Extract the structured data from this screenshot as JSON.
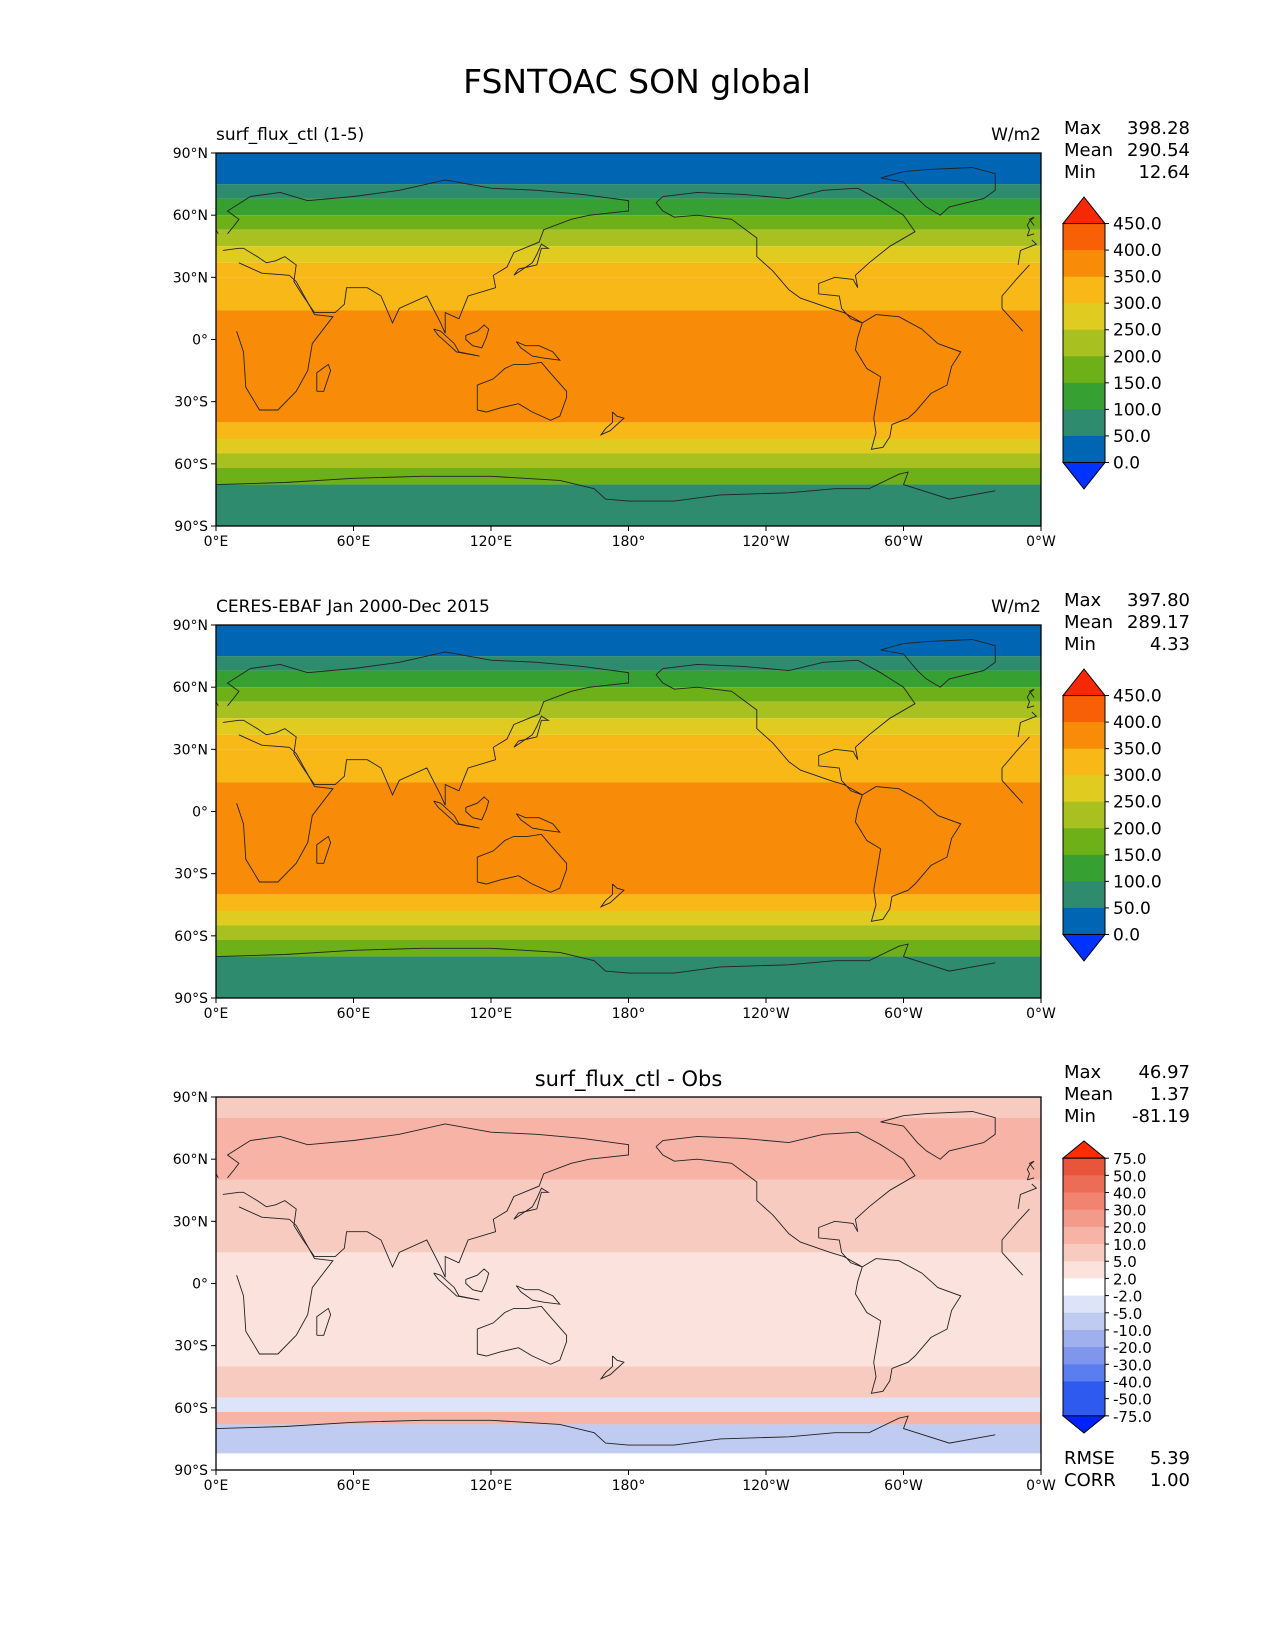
{
  "title": "FSNTOAC SON global",
  "colors": {
    "main_scale": [
      "#0033ff",
      "#0066b3",
      "#2e8b6e",
      "#36a032",
      "#6eb018",
      "#a8c020",
      "#e0cc20",
      "#f8b818",
      "#f88c08",
      "#f86008",
      "#f82800"
    ],
    "diff_scale": [
      "#0022ff",
      "#2f5af0",
      "#5a7df0",
      "#7f96ec",
      "#a0b0ee",
      "#c0cbf2",
      "#dde3f8",
      "#ffffff",
      "#fbe2dc",
      "#f8cbc1",
      "#f6b3a6",
      "#f39b8b",
      "#f08470",
      "#ec6c55",
      "#e8553b",
      "#ff2d00"
    ],
    "land_outline": "#222222"
  },
  "panels": [
    {
      "id": "model",
      "left_title": "surf_flux_ctl (1-5)",
      "center_title": "",
      "units": "W/m2",
      "stats": {
        "max_label": "Max",
        "max": "398.28",
        "mean_label": "Mean",
        "mean": "290.54",
        "min_label": "Min",
        "min": "12.64"
      },
      "colorbar_ticks": [
        "450.0",
        "400.0",
        "350.0",
        "300.0",
        "250.0",
        "200.0",
        "150.0",
        "100.0",
        "50.0",
        "0.0"
      ]
    },
    {
      "id": "obs",
      "left_title": "CERES-EBAF Jan 2000-Dec 2015",
      "center_title": "",
      "units": "W/m2",
      "stats": {
        "max_label": "Max",
        "max": "397.80",
        "mean_label": "Mean",
        "mean": "289.17",
        "min_label": "Min",
        "min": "4.33"
      },
      "colorbar_ticks": [
        "450.0",
        "400.0",
        "350.0",
        "300.0",
        "250.0",
        "200.0",
        "150.0",
        "100.0",
        "50.0",
        "0.0"
      ]
    },
    {
      "id": "diff",
      "left_title": "",
      "center_title": "surf_flux_ctl - Obs",
      "units": "",
      "stats": {
        "max_label": "Max",
        "max": "46.97",
        "mean_label": "Mean",
        "mean": "1.37",
        "min_label": "Min",
        "min": "-81.19"
      },
      "colorbar_ticks": [
        "75.0",
        "50.0",
        "40.0",
        "30.0",
        "20.0",
        "10.0",
        "5.0",
        "2.0",
        "-2.0",
        "-5.0",
        "-10.0",
        "-20.0",
        "-30.0",
        "-40.0",
        "-50.0",
        "-75.0"
      ],
      "metrics": {
        "rmse_label": "RMSE",
        "rmse": "5.39",
        "corr_label": "CORR",
        "corr": "1.00"
      }
    }
  ],
  "chart_data": [
    {
      "type": "heatmap",
      "title": "surf_flux_ctl (1-5)",
      "units": "W/m2",
      "x_ticks": [
        "0°E",
        "60°E",
        "120°E",
        "180°",
        "120°W",
        "60°W",
        "0°W"
      ],
      "y_ticks": [
        "90°N",
        "60°N",
        "30°N",
        "0°",
        "30°S",
        "60°S",
        "90°S"
      ],
      "xlim": [
        0,
        360
      ],
      "ylim": [
        -90,
        90
      ],
      "levels": [
        0,
        50,
        100,
        150,
        200,
        250,
        300,
        350,
        400,
        450
      ],
      "stats": {
        "max": 398.28,
        "mean": 290.54,
        "min": 12.64
      },
      "zonal_mean_bands": [
        {
          "lat": [
            75,
            90
          ],
          "value": 25
        },
        {
          "lat": [
            68,
            75
          ],
          "value": 75
        },
        {
          "lat": [
            60,
            68
          ],
          "value": 125
        },
        {
          "lat": [
            53,
            60
          ],
          "value": 175
        },
        {
          "lat": [
            45,
            53
          ],
          "value": 225
        },
        {
          "lat": [
            37,
            45
          ],
          "value": 275
        },
        {
          "lat": [
            30,
            37
          ],
          "value": 300
        },
        {
          "lat": [
            14,
            30
          ],
          "value": 325
        },
        {
          "lat": [
            -40,
            14
          ],
          "value": 375
        },
        {
          "lat": [
            -48,
            -40
          ],
          "value": 325
        },
        {
          "lat": [
            -55,
            -48
          ],
          "value": 275
        },
        {
          "lat": [
            -62,
            -55
          ],
          "value": 225
        },
        {
          "lat": [
            -70,
            -62
          ],
          "value": 175
        },
        {
          "lat": [
            -90,
            -70
          ],
          "value": 75
        }
      ]
    },
    {
      "type": "heatmap",
      "title": "CERES-EBAF Jan 2000-Dec 2015",
      "units": "W/m2",
      "x_ticks": [
        "0°E",
        "60°E",
        "120°E",
        "180°",
        "120°W",
        "60°W",
        "0°W"
      ],
      "y_ticks": [
        "90°N",
        "60°N",
        "30°N",
        "0°",
        "30°S",
        "60°S",
        "90°S"
      ],
      "xlim": [
        0,
        360
      ],
      "ylim": [
        -90,
        90
      ],
      "levels": [
        0,
        50,
        100,
        150,
        200,
        250,
        300,
        350,
        400,
        450
      ],
      "stats": {
        "max": 397.8,
        "mean": 289.17,
        "min": 4.33
      },
      "zonal_mean_bands": [
        {
          "lat": [
            75,
            90
          ],
          "value": 25
        },
        {
          "lat": [
            68,
            75
          ],
          "value": 75
        },
        {
          "lat": [
            60,
            68
          ],
          "value": 125
        },
        {
          "lat": [
            53,
            60
          ],
          "value": 175
        },
        {
          "lat": [
            45,
            53
          ],
          "value": 225
        },
        {
          "lat": [
            37,
            45
          ],
          "value": 275
        },
        {
          "lat": [
            30,
            37
          ],
          "value": 300
        },
        {
          "lat": [
            14,
            30
          ],
          "value": 325
        },
        {
          "lat": [
            -40,
            14
          ],
          "value": 375
        },
        {
          "lat": [
            -48,
            -40
          ],
          "value": 325
        },
        {
          "lat": [
            -55,
            -48
          ],
          "value": 275
        },
        {
          "lat": [
            -62,
            -55
          ],
          "value": 225
        },
        {
          "lat": [
            -70,
            -62
          ],
          "value": 175
        },
        {
          "lat": [
            -90,
            -70
          ],
          "value": 75
        }
      ]
    },
    {
      "type": "heatmap",
      "title": "surf_flux_ctl - Obs",
      "units": "",
      "x_ticks": [
        "0°E",
        "60°E",
        "120°E",
        "180°",
        "120°W",
        "60°W",
        "0°W"
      ],
      "y_ticks": [
        "90°N",
        "60°N",
        "30°N",
        "0°",
        "30°S",
        "60°S",
        "90°S"
      ],
      "xlim": [
        0,
        360
      ],
      "ylim": [
        -90,
        90
      ],
      "levels": [
        -75,
        -50,
        -40,
        -30,
        -20,
        -10,
        -5,
        -2,
        2,
        5,
        10,
        20,
        30,
        40,
        50,
        75
      ],
      "stats": {
        "max": 46.97,
        "mean": 1.37,
        "min": -81.19,
        "rmse": 5.39,
        "corr": 1.0
      },
      "zonal_mean_bands": [
        {
          "lat": [
            80,
            90
          ],
          "value": 3
        },
        {
          "lat": [
            50,
            80
          ],
          "value": 6
        },
        {
          "lat": [
            15,
            50
          ],
          "value": 4
        },
        {
          "lat": [
            -40,
            15
          ],
          "value": 1
        },
        {
          "lat": [
            -55,
            -40
          ],
          "value": 3
        },
        {
          "lat": [
            -62,
            -55
          ],
          "value": -8
        },
        {
          "lat": [
            -68,
            -62
          ],
          "value": 7
        },
        {
          "lat": [
            -82,
            -68
          ],
          "value": -12
        },
        {
          "lat": [
            -90,
            -82
          ],
          "value": -4
        }
      ]
    }
  ]
}
